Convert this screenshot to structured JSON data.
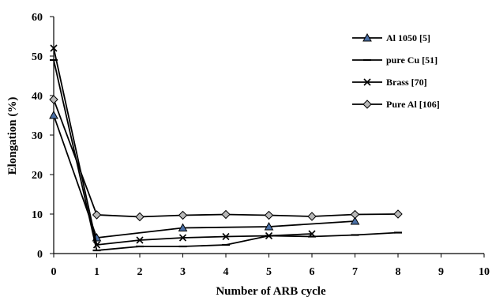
{
  "chart_data": {
    "type": "line",
    "title": "",
    "xlabel": "Number of ARB cycle",
    "ylabel": "Elongation (%)",
    "xlim": [
      0,
      10
    ],
    "ylim": [
      0,
      60
    ],
    "x_ticks": [
      "0",
      "1",
      "2",
      "3",
      "4",
      "5",
      "6",
      "7",
      "8",
      "9",
      "10"
    ],
    "y_ticks": [
      "0",
      "10",
      "20",
      "30",
      "40",
      "50",
      "60"
    ],
    "grid": false,
    "legend_position": "top-right",
    "series": [
      {
        "name": "Al 1050 [5]",
        "marker": "triangle",
        "marker_fill": "#4a6fa5",
        "x": [
          0,
          1,
          3,
          5,
          7
        ],
        "y": [
          35,
          4,
          6.5,
          6.8,
          8.2
        ]
      },
      {
        "name": "pure Cu [51]",
        "marker": "dash",
        "marker_fill": "#000000",
        "x": [
          0,
          1,
          2,
          3,
          4,
          5,
          6,
          7,
          8
        ],
        "y": [
          49,
          0.8,
          1.8,
          1.8,
          2.2,
          4.5,
          4.3,
          4.7,
          5.3
        ]
      },
      {
        "name": "Brass [70]",
        "marker": "x",
        "marker_fill": "#000000",
        "x": [
          0,
          1,
          2,
          3,
          4,
          5,
          6
        ],
        "y": [
          52,
          2.2,
          3.4,
          4.0,
          4.3,
          4.5,
          5.0
        ]
      },
      {
        "name": "Pure Al [106]",
        "marker": "diamond",
        "marker_fill": "#b8b8b8",
        "x": [
          0,
          1,
          2,
          3,
          4,
          5,
          6,
          7,
          8
        ],
        "y": [
          39,
          9.8,
          9.3,
          9.7,
          9.9,
          9.7,
          9.4,
          9.9,
          10.0
        ]
      }
    ]
  }
}
